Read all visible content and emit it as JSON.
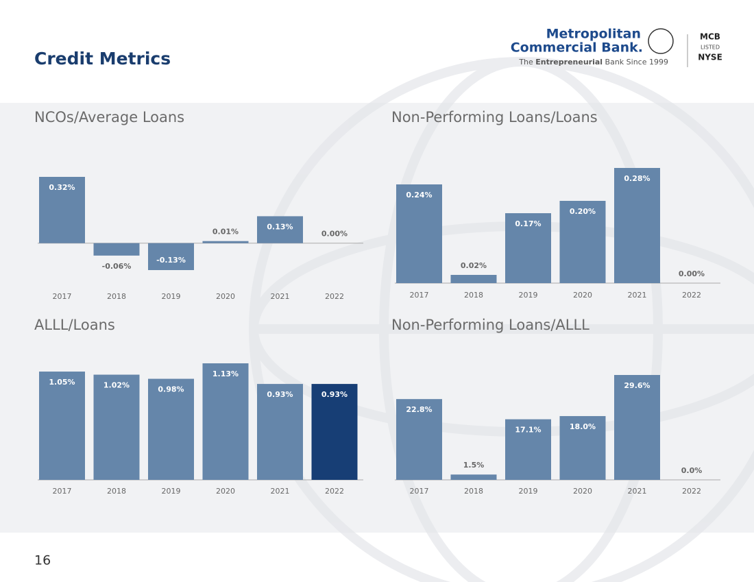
{
  "header": {
    "title": "Credit Metrics",
    "logo_line1": "Metropolitan",
    "logo_line2": "Commercial Bank.",
    "tagline_pre": "The ",
    "tagline_bold": "Entrepreneurial",
    "tagline_post": " Bank Since 1999",
    "badge_top": "MCB",
    "badge_mid": "LISTED",
    "badge_bottom": "NYSE"
  },
  "page_number": "16",
  "chart_data": [
    {
      "type": "bar",
      "title": "NCOs/Average Loans",
      "categories": [
        "2017",
        "2018",
        "2019",
        "2020",
        "2021",
        "2022"
      ],
      "values": [
        0.32,
        -0.06,
        -0.13,
        0.01,
        0.13,
        0.0
      ],
      "value_labels": [
        "0.32%",
        "-0.06%",
        "-0.13%",
        "0.01%",
        "0.13%",
        "0.00%"
      ],
      "colors": [
        "#6586aa",
        "#6586aa",
        "#6586aa",
        "#6586aa",
        "#6586aa",
        "#6586aa"
      ]
    },
    {
      "type": "bar",
      "title": "Non-Performing Loans/Loans",
      "categories": [
        "2017",
        "2018",
        "2019",
        "2020",
        "2021",
        "2022"
      ],
      "values": [
        0.24,
        0.02,
        0.17,
        0.2,
        0.28,
        0.0
      ],
      "value_labels": [
        "0.24%",
        "0.02%",
        "0.17%",
        "0.20%",
        "0.28%",
        "0.00%"
      ],
      "colors": [
        "#6586aa",
        "#6586aa",
        "#6586aa",
        "#6586aa",
        "#6586aa",
        "#6586aa"
      ]
    },
    {
      "type": "bar",
      "title": "ALLL/Loans",
      "categories": [
        "2017",
        "2018",
        "2019",
        "2020",
        "2021",
        "2022"
      ],
      "values": [
        1.05,
        1.02,
        0.98,
        1.13,
        0.93,
        0.93
      ],
      "value_labels": [
        "1.05%",
        "1.02%",
        "0.98%",
        "1.13%",
        "0.93%",
        "0.93%"
      ],
      "colors": [
        "#6586aa",
        "#6586aa",
        "#6586aa",
        "#6586aa",
        "#6586aa",
        "#173e75"
      ]
    },
    {
      "type": "bar",
      "title": "Non-Performing Loans/ALLL",
      "categories": [
        "2017",
        "2018",
        "2019",
        "2020",
        "2021",
        "2022"
      ],
      "values": [
        22.8,
        1.5,
        17.1,
        18.0,
        29.6,
        0.0
      ],
      "value_labels": [
        "22.8%",
        "1.5%",
        "17.1%",
        "18.0%",
        "29.6%",
        "0.0%"
      ],
      "colors": [
        "#6586aa",
        "#6586aa",
        "#6586aa",
        "#6586aa",
        "#6586aa",
        "#6586aa"
      ]
    }
  ]
}
